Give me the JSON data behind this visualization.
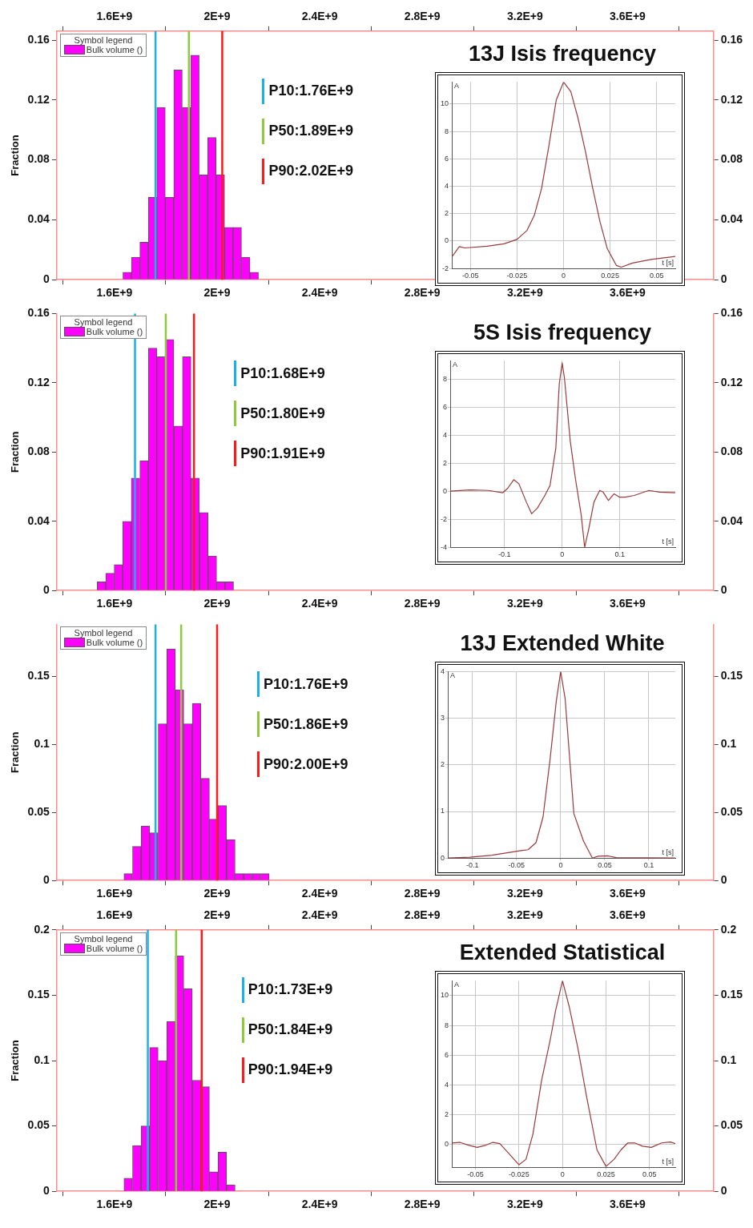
{
  "chart_data": [
    {
      "type": "histogram",
      "ylabel": "Fraction",
      "legend_title": "Symbol legend",
      "legend": "top left",
      "grid": false,
      "bins": [
        1633000000,
        1666000000,
        1699000000,
        1732000000,
        1765000000,
        1798000000,
        1831000000,
        1864000000,
        1897000000,
        1930000000,
        1963000000,
        1996000000,
        2029000000,
        2062000000,
        2095000000,
        2128000000,
        2161000000
      ],
      "series": [
        {
          "name": "Bulk volume ()",
          "color": "#ff00ff",
          "values": [
            0.005,
            0.015,
            0.025,
            0.055,
            0.115,
            0.055,
            0.14,
            0.115,
            0.15,
            0.07,
            0.095,
            0.07,
            0.035,
            0.035,
            0.015,
            0.005
          ]
        }
      ],
      "xlim": [
        1375000000,
        3935000000
      ],
      "xticks": [
        {
          "value": 1600000000,
          "label": "1.6E+9"
        },
        {
          "value": 2000000000,
          "label": "2E+9"
        },
        {
          "value": 2400000000,
          "label": "2.4E+9"
        },
        {
          "value": 2800000000,
          "label": "2.8E+9"
        },
        {
          "value": 3200000000,
          "label": "3.2E+9"
        },
        {
          "value": 3600000000,
          "label": "3.6E+9"
        }
      ],
      "x2lim": [
        1375000000,
        3935000000
      ],
      "x2ticks": [
        {
          "value": 1600000000,
          "label": "1.6E+9"
        },
        {
          "value": 2000000000,
          "label": "2E+9"
        },
        {
          "value": 2400000000,
          "label": "2.4E+9"
        },
        {
          "value": 2800000000,
          "label": "2.8E+9"
        },
        {
          "value": 3200000000,
          "label": "3.2E+9"
        },
        {
          "value": 3600000000,
          "label": "3.6E+9"
        }
      ],
      "ylim": [
        0,
        0.166
      ],
      "yticks": [
        0,
        0.04,
        0.08,
        0.12,
        0.16
      ],
      "y2lim": [
        0,
        0.166
      ],
      "y2ticks": [
        0,
        0.04,
        0.08,
        0.12,
        0.16
      ],
      "annotations": [
        "P10:1.76E+9",
        "P50:1.89E+9",
        "P90:2.02E+9"
      ],
      "ref_lines": [
        {
          "axis": "x",
          "value": 1760000000,
          "color": "#1ab0ea"
        },
        {
          "axis": "x",
          "value": 1890000000,
          "color": "#8ccc3c"
        },
        {
          "axis": "x",
          "value": 2020000000,
          "color": "#ff1a1a"
        }
      ]
    },
    {
      "type": "line",
      "title": "13J Isis frequency",
      "xlabel": "t [s]",
      "ylabel": "A",
      "grid": true,
      "x": [
        -0.06,
        -0.056,
        -0.053,
        -0.041,
        -0.032,
        -0.025,
        -0.0196,
        -0.0157,
        -0.0118,
        -0.0078,
        -0.0039,
        0,
        0.0039,
        0.0078,
        0.0118,
        0.0157,
        0.0196,
        0.0235,
        0.0284,
        0.031,
        0.037,
        0.047,
        0.06
      ],
      "series": [
        {
          "color": "#9b3a3a",
          "values": [
            -1.17,
            -0.4,
            -0.5,
            -0.37,
            -0.2,
            0.12,
            0.78,
            1.88,
            3.83,
            7.0,
            10.3,
            11.6,
            10.9,
            8.95,
            6.5,
            3.83,
            1.39,
            -0.56,
            -1.78,
            -1.9,
            -1.6,
            -1.34,
            -1.12
          ]
        }
      ],
      "xlim": [
        -0.06,
        0.06
      ],
      "xticks": [
        -0.05,
        -0.025,
        0,
        0.025,
        0.05
      ],
      "ylim": [
        -2,
        11.6
      ],
      "yticks": [
        -2,
        0,
        2,
        4,
        6,
        8,
        10
      ]
    },
    {
      "type": "histogram",
      "ylabel": "Fraction",
      "legend_title": "Symbol legend",
      "legend": "top left",
      "grid": false,
      "bins": [
        1532000000,
        1566000000,
        1599000000,
        1632000000,
        1665000000,
        1699000000,
        1732000000,
        1765000000,
        1798000000,
        1832000000,
        1865000000,
        1898000000,
        1931000000,
        1965000000,
        1998000000,
        2031000000,
        2064000000
      ],
      "series": [
        {
          "name": "Bulk volume ()",
          "color": "#ff00ff",
          "values": [
            0.005,
            0.01,
            0.015,
            0.04,
            0.065,
            0.075,
            0.14,
            0.135,
            0.145,
            0.095,
            0.135,
            0.065,
            0.045,
            0.02,
            0.005,
            0.005
          ]
        }
      ],
      "xlim": [
        1375000000,
        3935000000
      ],
      "xticks": [
        {
          "value": 1600000000,
          "label": "1.6E+9"
        },
        {
          "value": 2000000000,
          "label": "2E+9"
        },
        {
          "value": 2400000000,
          "label": "2.4E+9"
        },
        {
          "value": 2800000000,
          "label": "2.8E+9"
        },
        {
          "value": 3200000000,
          "label": "3.2E+9"
        },
        {
          "value": 3600000000,
          "label": "3.6E+9"
        }
      ],
      "ylim": [
        0,
        0.16
      ],
      "yticks": [
        0,
        0.04,
        0.08,
        0.12,
        0.16
      ],
      "y2lim": [
        0,
        0.16
      ],
      "y2ticks": [
        0,
        0.04,
        0.08,
        0.12,
        0.16
      ],
      "annotations": [
        "P10:1.68E+9",
        "P50:1.80E+9",
        "P90:1.91E+9"
      ],
      "ref_lines": [
        {
          "axis": "x",
          "value": 1680000000,
          "color": "#1ab0ea"
        },
        {
          "axis": "x",
          "value": 1800000000,
          "color": "#8ccc3c"
        },
        {
          "axis": "x",
          "value": 1910000000,
          "color": "#ff1a1a"
        }
      ]
    },
    {
      "type": "line",
      "title": "5S Isis frequency",
      "xlabel": "t [s]",
      "ylabel": "A",
      "grid": true,
      "x": [
        -0.194,
        -0.16,
        -0.128,
        -0.103,
        -0.094,
        -0.084,
        -0.075,
        -0.062,
        -0.053,
        -0.043,
        -0.03,
        -0.021,
        -0.011,
        -0.005,
        0,
        0.004,
        0.014,
        0.023,
        0.033,
        0.039,
        0.046,
        0.055,
        0.065,
        0.071,
        0.08,
        0.09,
        0.099,
        0.109,
        0.125,
        0.15,
        0.169,
        0.196
      ],
      "series": [
        {
          "color": "#9b3a3a",
          "values": [
            0.02,
            0.1,
            0.07,
            -0.1,
            0.24,
            0.84,
            0.55,
            -0.77,
            -1.6,
            -1.2,
            -0.29,
            0.43,
            3.1,
            7.7,
            9.2,
            8.1,
            3.6,
            0.9,
            -1.7,
            -4.0,
            -2.7,
            -0.77,
            0.07,
            -0.05,
            -0.65,
            -0.17,
            -0.41,
            -0.41,
            -0.29,
            0.07,
            -0.05,
            -0.1
          ]
        }
      ],
      "xlim": [
        -0.194,
        0.196
      ],
      "xticks": [
        -0.1,
        0,
        0.1
      ],
      "ylim": [
        -4,
        9.35
      ],
      "yticks": [
        -4,
        -2,
        0,
        2,
        4,
        6,
        8
      ]
    },
    {
      "type": "histogram",
      "ylabel": "Fraction",
      "legend_title": "Symbol legend",
      "legend": "top left",
      "grid": false,
      "bins": [
        1637000000,
        1670000000,
        1704000000,
        1737000000,
        1770000000,
        1804000000,
        1837000000,
        1870000000,
        1903000000,
        1937000000,
        1970000000,
        2003000000,
        2037000000,
        2070000000,
        2103000000,
        2136000000,
        2170000000,
        2203000000
      ],
      "series": [
        {
          "name": "Bulk volume ()",
          "color": "#ff00ff",
          "values": [
            0.005,
            0.025,
            0.04,
            0.035,
            0.115,
            0.17,
            0.14,
            0.115,
            0.13,
            0.075,
            0.045,
            0.055,
            0.03,
            0.005,
            0.005,
            0.005,
            0.005
          ]
        }
      ],
      "xlim": [
        1375000000,
        3935000000
      ],
      "xticks": [
        {
          "value": 1600000000,
          "label": "1.6E+9"
        },
        {
          "value": 2000000000,
          "label": "2E+9"
        },
        {
          "value": 2400000000,
          "label": "2.4E+9"
        },
        {
          "value": 2800000000,
          "label": "2.8E+9"
        },
        {
          "value": 3200000000,
          "label": "3.2E+9"
        },
        {
          "value": 3600000000,
          "label": "3.6E+9"
        }
      ],
      "ylim": [
        0,
        0.188
      ],
      "yticks": [
        0,
        0.05,
        0.1,
        0.15
      ],
      "y2lim": [
        0,
        0.188
      ],
      "y2ticks": [
        0,
        0.05,
        0.1,
        0.15
      ],
      "annotations": [
        "P10:1.76E+9",
        "P50:1.86E+9",
        "P90:2.00E+9"
      ],
      "ref_lines": [
        {
          "axis": "x",
          "value": 1760000000,
          "color": "#1ab0ea"
        },
        {
          "axis": "x",
          "value": 1860000000,
          "color": "#8ccc3c"
        },
        {
          "axis": "x",
          "value": 2000000000,
          "color": "#ff1a1a"
        }
      ]
    },
    {
      "type": "line",
      "title": "13J Extended White",
      "xlabel": "t [s]",
      "ylabel": "A",
      "grid": true,
      "x": [
        -0.128,
        -0.103,
        -0.078,
        -0.058,
        -0.045,
        -0.037,
        -0.028,
        -0.02,
        -0.012,
        -0.005,
        0,
        0.005,
        0.015,
        0.026,
        0.036,
        0.0425,
        0.053,
        0.063,
        0.13
      ],
      "series": [
        {
          "color": "#9b3a3a",
          "values": [
            0,
            0.02,
            0.06,
            0.12,
            0.16,
            0.18,
            0.33,
            0.88,
            2.12,
            3.36,
            4.0,
            3.43,
            0.95,
            0.36,
            0,
            0.04,
            0.05,
            0.01,
            0
          ]
        }
      ],
      "xlim": [
        -0.128,
        0.13
      ],
      "xticks": [
        -0.1,
        -0.05,
        0,
        0.05,
        0.1
      ],
      "ylim": [
        0,
        4
      ],
      "yticks": [
        0,
        1,
        2,
        3,
        4
      ]
    },
    {
      "type": "histogram",
      "ylabel": "Fraction",
      "legend_title": "Symbol legend",
      "legend": "top left",
      "grid": false,
      "bins": [
        1637000000,
        1670000000,
        1704000000,
        1737000000,
        1770000000,
        1804000000,
        1837000000,
        1870000000,
        1903000000,
        1937000000,
        1970000000,
        2003000000,
        2037000000,
        2070000000
      ],
      "series": [
        {
          "name": "Bulk volume ()",
          "color": "#ff00ff",
          "values": [
            0.01,
            0.035,
            0.05,
            0.11,
            0.1,
            0.13,
            0.18,
            0.155,
            0.085,
            0.08,
            0.015,
            0.03,
            0.005
          ]
        }
      ],
      "xlim": [
        1375000000,
        3935000000
      ],
      "xticks": [
        {
          "value": 1600000000,
          "label": "1.6E+9"
        },
        {
          "value": 2000000000,
          "label": "2E+9"
        },
        {
          "value": 2400000000,
          "label": "2.4E+9"
        },
        {
          "value": 2800000000,
          "label": "2.8E+9"
        },
        {
          "value": 3200000000,
          "label": "3.2E+9"
        },
        {
          "value": 3600000000,
          "label": "3.6E+9"
        }
      ],
      "x2lim": [
        1375000000,
        3935000000
      ],
      "x2ticks": [
        {
          "value": 1600000000,
          "label": "1.6E+9"
        },
        {
          "value": 2000000000,
          "label": "2E+9"
        },
        {
          "value": 2400000000,
          "label": "2.4E+9"
        },
        {
          "value": 2800000000,
          "label": "2.8E+9"
        },
        {
          "value": 3200000000,
          "label": "3.2E+9"
        },
        {
          "value": 3600000000,
          "label": "3.6E+9"
        }
      ],
      "ylim": [
        0,
        0.2
      ],
      "yticks": [
        0,
        0.05,
        0.1,
        0.15,
        0.2
      ],
      "y2lim": [
        0,
        0.2
      ],
      "y2ticks": [
        0,
        0.05,
        0.1,
        0.15,
        0.2
      ],
      "annotations": [
        "P10:1.73E+9",
        "P50:1.84E+9",
        "P90:1.94E+9"
      ],
      "ref_lines": [
        {
          "axis": "x",
          "value": 1730000000,
          "color": "#1ab0ea"
        },
        {
          "axis": "x",
          "value": 1840000000,
          "color": "#8ccc3c"
        },
        {
          "axis": "x",
          "value": 1940000000,
          "color": "#ff1a1a"
        }
      ]
    },
    {
      "type": "line",
      "title": "Extended Statistical",
      "xlabel": "t [s]",
      "ylabel": "A",
      "grid": true,
      "x": [
        -0.0636,
        -0.059,
        -0.054,
        -0.049,
        -0.044,
        -0.04,
        -0.036,
        -0.031,
        -0.025,
        -0.021,
        -0.017,
        -0.012,
        -0.007,
        -0.004,
        0,
        0.004,
        0.0089,
        0.0138,
        0.0198,
        0.025,
        0.0296,
        0.0336,
        0.0375,
        0.0415,
        0.046,
        0.051,
        0.057,
        0.062,
        0.0648
      ],
      "series": [
        {
          "color": "#9b3a3a",
          "values": [
            0.09,
            0.13,
            -0.06,
            -0.21,
            -0.06,
            0.13,
            0.04,
            -0.6,
            -1.38,
            -1.02,
            0.68,
            4.3,
            7.06,
            8.98,
            11.0,
            9.19,
            6.43,
            3.23,
            -0.38,
            -1.49,
            -1.02,
            -0.38,
            0.09,
            0.09,
            -0.13,
            -0.21,
            0.09,
            0.15,
            0.04
          ]
        }
      ],
      "xlim": [
        -0.0636,
        0.0648
      ],
      "xticks": [
        -0.05,
        -0.025,
        0,
        0.025,
        0.05
      ],
      "ylim": [
        -1.55,
        11
      ],
      "yticks": [
        0,
        2,
        4,
        6,
        8,
        10
      ]
    }
  ]
}
